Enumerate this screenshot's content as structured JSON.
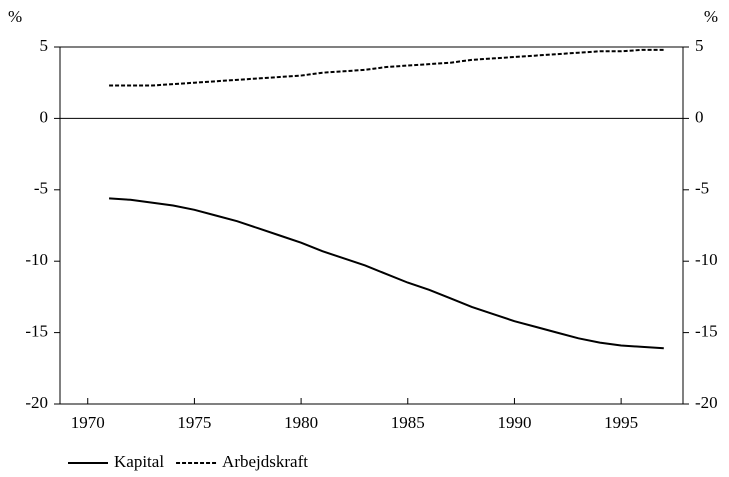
{
  "chart_data": {
    "type": "line",
    "y_unit": "%",
    "y2_unit": "%",
    "x": [
      1971,
      1972,
      1973,
      1974,
      1975,
      1976,
      1977,
      1978,
      1979,
      1980,
      1981,
      1982,
      1983,
      1984,
      1985,
      1986,
      1987,
      1988,
      1989,
      1990,
      1991,
      1992,
      1993,
      1994,
      1995,
      1996,
      1997
    ],
    "series": [
      {
        "name": "Kapital",
        "color": "#000000",
        "dash": "solid",
        "values": [
          -5.6,
          -5.7,
          -5.9,
          -6.1,
          -6.4,
          -6.8,
          -7.2,
          -7.7,
          -8.2,
          -8.7,
          -9.3,
          -9.8,
          -10.3,
          -10.9,
          -11.5,
          -12.0,
          -12.6,
          -13.2,
          -13.7,
          -14.2,
          -14.6,
          -15.0,
          -15.4,
          -15.7,
          -15.9,
          -16.0,
          -16.1
        ]
      },
      {
        "name": "Arbejdskraft",
        "color": "#000000",
        "dash": "dashed",
        "values": [
          2.3,
          2.3,
          2.3,
          2.4,
          2.5,
          2.6,
          2.7,
          2.8,
          2.9,
          3.0,
          3.2,
          3.3,
          3.4,
          3.6,
          3.7,
          3.8,
          3.9,
          4.1,
          4.2,
          4.3,
          4.4,
          4.5,
          4.6,
          4.7,
          4.7,
          4.8,
          4.8
        ]
      }
    ],
    "xlim": [
      1968.7,
      1997.9
    ],
    "xticks": [
      1970,
      1975,
      1980,
      1985,
      1990,
      1995
    ],
    "ylim": [
      -20,
      5
    ],
    "yticks": [
      5,
      0,
      -5,
      -10,
      -15,
      -20
    ],
    "y2lim": [
      -20,
      5
    ],
    "y2ticks": [
      5,
      0,
      -5,
      -10,
      -15,
      -20
    ],
    "zero_line": true,
    "legend": "bottom-left"
  }
}
